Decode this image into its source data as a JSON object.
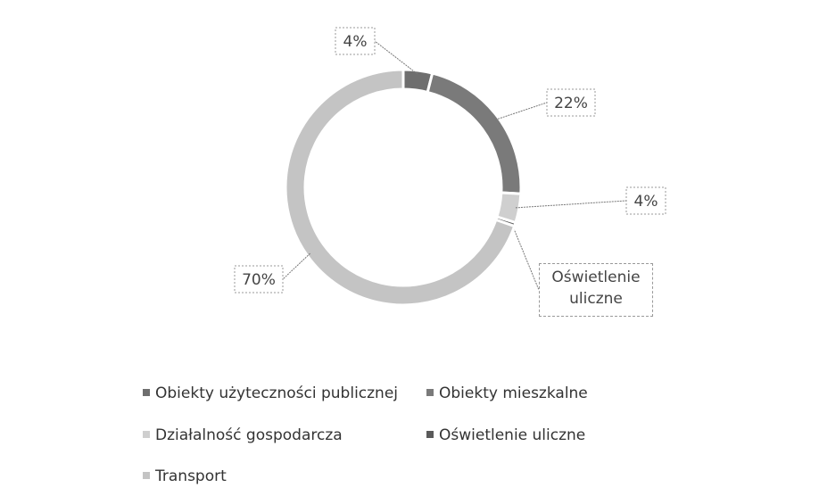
{
  "chart_data": {
    "type": "donut",
    "categories": [
      "Obiekty użyteczności publicznej",
      "Obiekty mieszkalne",
      "Działalność gospodarcza",
      "Oświetlenie uliczne",
      "Transport"
    ],
    "values": [
      4,
      22,
      4,
      0.5,
      70
    ],
    "value_labels": [
      "4%",
      "22%",
      "4%",
      null,
      "70%"
    ],
    "colors": [
      "#6e6e6e",
      "#7a7a7a",
      "#cfcfcf",
      "#5a5a5a",
      "#c4c4c4"
    ],
    "legend": "bottom"
  }
}
